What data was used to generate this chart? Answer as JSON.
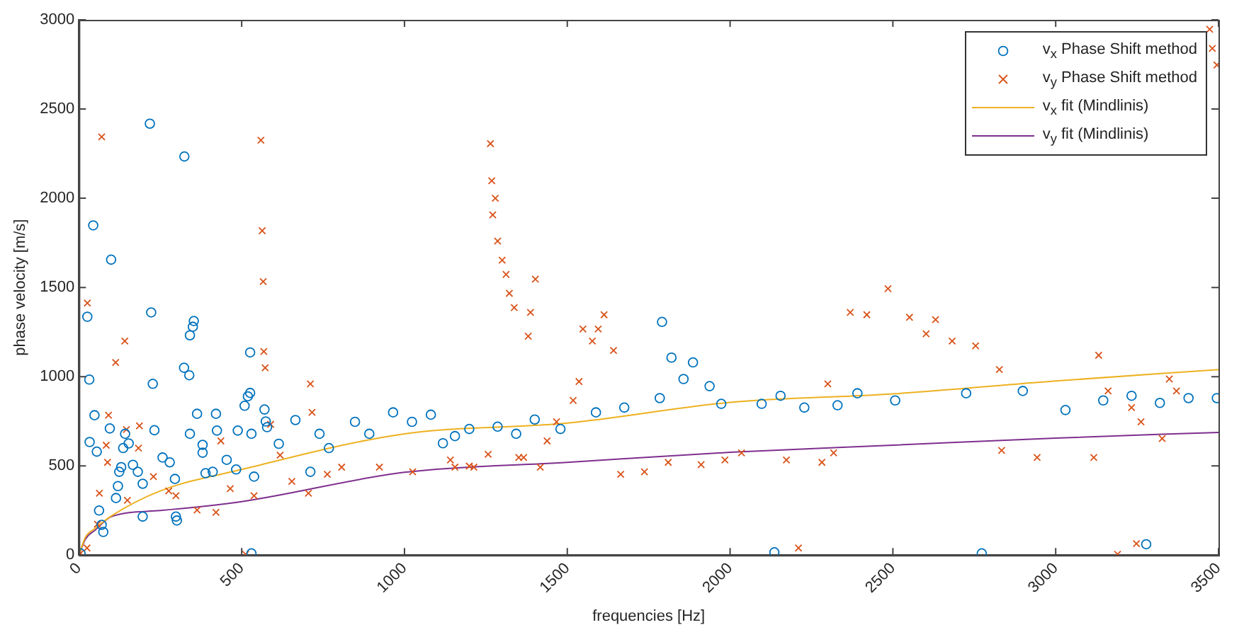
{
  "chart_data": {
    "type": "scatter",
    "xlabel": "frequencies [Hz]",
    "ylabel": "phase velocity [m/s]",
    "xlim": [
      0,
      3500
    ],
    "xticks": [
      0,
      500,
      1000,
      1500,
      2000,
      2500,
      3000,
      3500
    ],
    "ylim": [
      0,
      3000
    ],
    "yticks": [
      0,
      500,
      1000,
      1500,
      2000,
      2500,
      3000
    ],
    "grid": false,
    "legend": "top right",
    "series": [
      {
        "name": "v$_{x}$ Phase Shift method",
        "type": "scatter",
        "marker": "circle",
        "color": "#0072bd",
        "x": [
          218,
          324,
          44,
          99,
          26,
          222,
          353,
          350,
          341,
          526,
          32,
          323,
          339,
          227,
          48,
          33,
          55,
          95,
          142,
          153,
          136,
          232,
          363,
          421,
          341,
          380,
          424,
          488,
          509,
          519,
          526,
          530,
          570,
          574,
          538,
          530,
          124,
          130,
          166,
          196,
          298,
          301,
          70,
          75,
          62,
          114,
          120,
          257,
          279,
          295,
          389,
          411,
          454,
          483,
          196,
          181,
          5,
          380,
          578,
          614,
          665,
          711,
          739,
          768,
          848,
          892,
          965,
          1023,
          1081,
          1118,
          1199,
          1155,
          1286,
          1343,
          1400,
          1479,
          1588,
          1675,
          1784,
          1791,
          1820,
          1857,
          1886,
          1937,
          1973,
          2097,
          2155,
          2228,
          2330,
          2391,
          2507,
          2725,
          2899,
          3030,
          3146,
          3233,
          3320,
          3408,
          3495,
          2773,
          3278,
          2136
        ],
        "values": [
          2418,
          2234,
          1848,
          1656,
          1336,
          1360,
          1312,
          1280,
          1232,
          1136,
          984,
          1050,
          1008,
          960,
          784,
          634,
          580,
          710,
          680,
          626,
          600,
          700,
          792,
          792,
          680,
          618,
          698,
          698,
          837,
          890,
          909,
          680,
          816,
          749,
          440,
          10,
          467,
          493,
          506,
          216,
          216,
          194,
          170,
          130,
          250,
          320,
          387,
          547,
          520,
          427,
          459,
          467,
          534,
          480,
          400,
          467,
          10,
          574,
          717,
          624,
          757,
          467,
          680,
          600,
          747,
          680,
          800,
          747,
          787,
          627,
          707,
          667,
          720,
          680,
          760,
          707,
          800,
          827,
          880,
          1307,
          1107,
          987,
          1080,
          947,
          848,
          848,
          893,
          827,
          840,
          907,
          867,
          907,
          920,
          813,
          867,
          893,
          853,
          880,
          880,
          10,
          61,
          16
        ]
      },
      {
        "name": "v$_{y}$ Phase Shift method",
        "type": "scatter",
        "marker": "cross",
        "color": "#d95319",
        "x": [
          70,
          559,
          563,
          566,
          26,
          141,
          113,
          568,
          572,
          711,
          91,
          186,
          146,
          84,
          183,
          88,
          63,
          5,
          25,
          57,
          149,
          229,
          276,
          298,
          363,
          421,
          465,
          436,
          512,
          538,
          589,
          618,
          654,
          705,
          716,
          763,
          807,
          923,
          1025,
          1141,
          1199,
          1155,
          1213,
          1257,
          1264,
          1268,
          1279,
          1271,
          1286,
          1300,
          1312,
          1322,
          1337,
          1380,
          1387,
          1402,
          1351,
          1366,
          1417,
          1438,
          1467,
          1518,
          1536,
          1548,
          1577,
          1595,
          1613,
          1642,
          1664,
          1737,
          1810,
          1911,
          1984,
          2035,
          2173,
          2282,
          2318,
          2300,
          2369,
          2420,
          2485,
          2551,
          2602,
          2631,
          2682,
          2754,
          2827,
          2834,
          2943,
          3117,
          3132,
          3161,
          3233,
          3262,
          3327,
          3349,
          3371,
          3248,
          3190,
          3473,
          3481,
          3495,
          2210
        ],
        "values": [
          2344,
          2325,
          1818,
          1533,
          1413,
          1200,
          1080,
          1141,
          1050,
          960,
          784,
          725,
          704,
          616,
          600,
          520,
          347,
          10,
          40,
          173,
          307,
          440,
          360,
          333,
          253,
          240,
          373,
          640,
          5,
          333,
          733,
          560,
          413,
          347,
          800,
          453,
          493,
          493,
          467,
          533,
          499,
          493,
          493,
          565,
          2306,
          2098,
          2000,
          1907,
          1760,
          1653,
          1573,
          1467,
          1387,
          1227,
          1360,
          1547,
          547,
          547,
          493,
          640,
          747,
          867,
          973,
          1267,
          1200,
          1267,
          1347,
          1147,
          453,
          467,
          520,
          507,
          533,
          573,
          533,
          520,
          573,
          960,
          1360,
          1347,
          1493,
          1333,
          1240,
          1320,
          1200,
          1173,
          1040,
          587,
          547,
          547,
          1120,
          920,
          827,
          747,
          653,
          987,
          920,
          64,
          5,
          2947,
          2840,
          2747,
          40
        ]
      },
      {
        "name": "v$_{x}$ fit (Mindlinis)",
        "type": "line",
        "marker": "none",
        "color": "#edb120",
        "x": [
          0,
          20,
          50,
          100,
          250,
          500,
          1000,
          1500,
          2000,
          2500,
          3000,
          3500
        ],
        "values": [
          0,
          100,
          150,
          220,
          360,
          480,
          680,
          740,
          856,
          904,
          976,
          1040
        ]
      },
      {
        "name": "v$_{y}$ fit (Mindlinis)",
        "type": "line",
        "marker": "none",
        "color": "#7e2f8e",
        "x": [
          0,
          20,
          50,
          100,
          250,
          500,
          1000,
          1500,
          2000,
          2500,
          3000,
          3500
        ],
        "values": [
          0,
          90,
          140,
          216,
          250,
          300,
          464,
          520,
          576,
          616,
          656,
          688
        ]
      }
    ]
  }
}
